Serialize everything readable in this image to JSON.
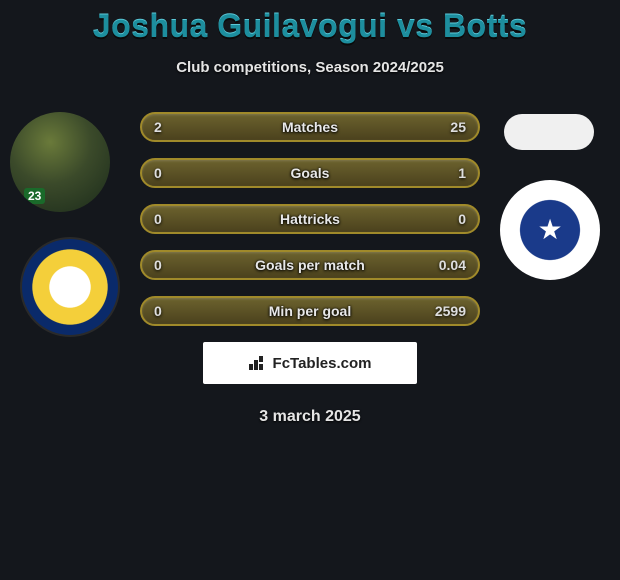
{
  "title": "Joshua Guilavogui vs Botts",
  "subtitle": "Club competitions, Season 2024/2025",
  "date": "3 march 2025",
  "watermark": "FcTables.com",
  "bars": [
    {
      "label": "Matches",
      "left": "2",
      "right": "25"
    },
    {
      "label": "Goals",
      "left": "0",
      "right": "1"
    },
    {
      "label": "Hattricks",
      "left": "0",
      "right": "0"
    },
    {
      "label": "Goals per match",
      "left": "0",
      "right": "0.04"
    },
    {
      "label": "Min per goal",
      "left": "0",
      "right": "2599"
    }
  ],
  "style": {
    "background": "#14171c",
    "title_color": "#1d8e9e",
    "bar_border": "#a08a2a",
    "text_color": "#e5e5e5"
  },
  "jersey_number": "23"
}
